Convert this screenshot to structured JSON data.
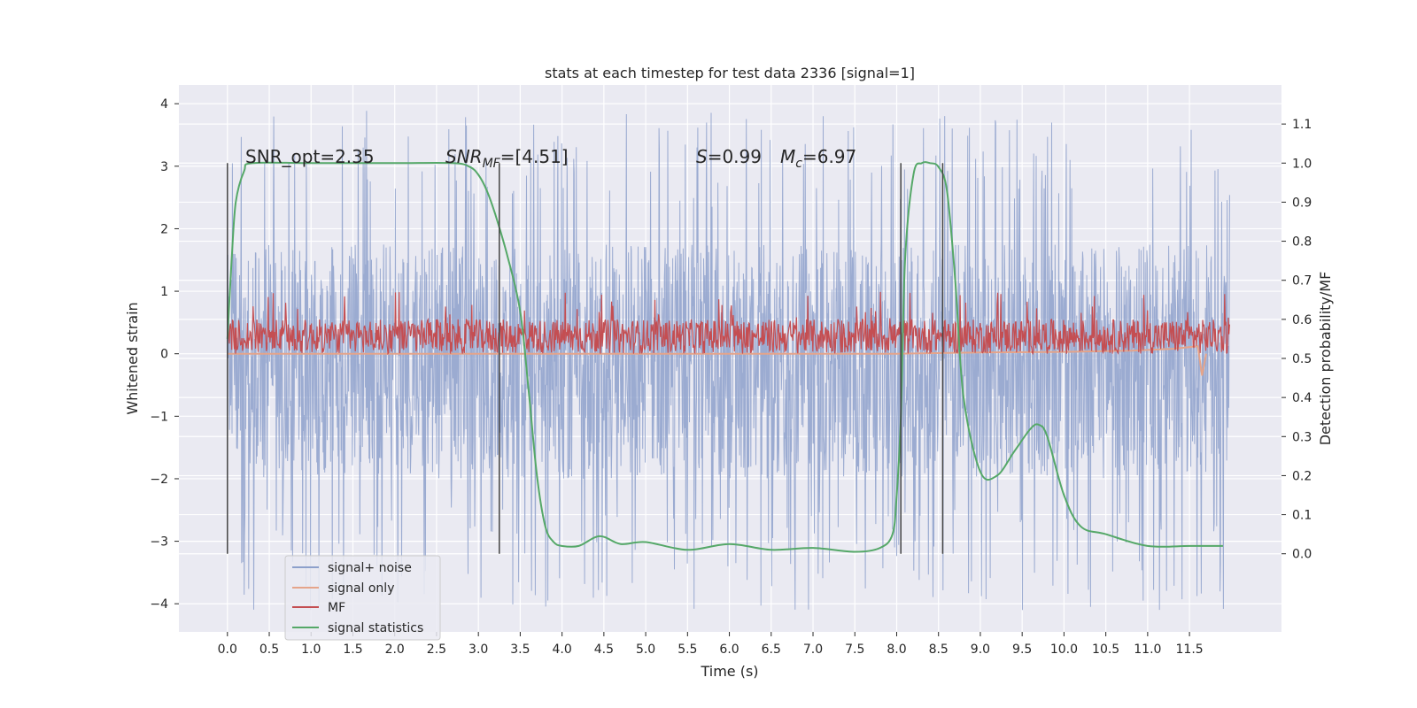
{
  "chart_data": {
    "type": "line",
    "title": "stats at each timestep for test data 2336 [signal=1]",
    "xlabel": "Time (s)",
    "ylabel": "Whitened strain",
    "ylabel_right": "Detection probability/MF",
    "xlim": [
      -0.58,
      12.6
    ],
    "ylim": [
      -4.45,
      4.3
    ],
    "ylim_right": [
      -0.2,
      1.2
    ],
    "xticks": [
      "0.0",
      "0.5",
      "1.0",
      "1.5",
      "2.0",
      "2.5",
      "3.0",
      "3.5",
      "4.0",
      "4.5",
      "5.0",
      "5.5",
      "6.0",
      "6.5",
      "7.0",
      "7.5",
      "8.0",
      "8.5",
      "9.0",
      "9.5",
      "10.0",
      "10.5",
      "11.0",
      "11.5"
    ],
    "yticks": [
      "-4",
      "-3",
      "-2",
      "-1",
      "0",
      "1",
      "2",
      "3",
      "4"
    ],
    "yticks_right": [
      "0.0",
      "0.1",
      "0.2",
      "0.3",
      "0.4",
      "0.5",
      "0.6",
      "0.7",
      "0.8",
      "0.9",
      "1.0",
      "1.1"
    ],
    "grid": true,
    "legend_position": "lower-left",
    "annotations": {
      "snr_opt": "SNR_opt=2.35",
      "snr_mf_name": "SNR",
      "snr_mf_sub": "MF",
      "snr_mf_value": "=[4.51]",
      "s_name": "S",
      "s_value": "=0.99",
      "mc_name": "M",
      "mc_sub": "c",
      "mc_value": "=6.97"
    },
    "vlines_x": [
      0.0,
      3.25,
      8.05,
      8.55
    ],
    "series": [
      {
        "name": "signal+ noise",
        "color": "#8da0cb",
        "axis": "left",
        "kind": "noise",
        "x_range": [
          0.0,
          11.98
        ],
        "core_range": [
          -2.0,
          1.75
        ],
        "extreme_range": [
          -4.1,
          3.9
        ]
      },
      {
        "name": "signal only",
        "color": "#e5a48a",
        "axis": "left",
        "kind": "chirp",
        "x": [
          0.0,
          8.0,
          9.0,
          10.0,
          10.8,
          11.3,
          11.6,
          11.65,
          11.7
        ],
        "y": [
          0.0,
          0.0,
          0.02,
          0.03,
          0.05,
          0.08,
          0.12,
          -0.35,
          0.0
        ]
      },
      {
        "name": "MF",
        "color": "#c44e52",
        "axis": "left",
        "kind": "band",
        "x_range": [
          0.0,
          11.98
        ],
        "band": [
          0.0,
          0.55
        ],
        "extreme_max": 1.0
      },
      {
        "name": "signal statistics",
        "color": "#55a868",
        "axis": "right",
        "kind": "curve",
        "x": [
          0.0,
          0.05,
          0.1,
          0.2,
          0.3,
          1.0,
          2.0,
          2.7,
          2.9,
          3.0,
          3.1,
          3.2,
          3.35,
          3.5,
          3.6,
          3.7,
          3.8,
          3.9,
          4.0,
          4.2,
          4.45,
          4.7,
          5.0,
          5.5,
          6.0,
          6.5,
          7.0,
          7.5,
          7.8,
          7.95,
          8.0,
          8.05,
          8.1,
          8.2,
          8.3,
          8.4,
          8.5,
          8.6,
          8.7,
          8.8,
          9.0,
          9.2,
          9.4,
          9.6,
          9.7,
          9.8,
          10.0,
          10.2,
          10.5,
          11.0,
          11.5,
          11.9
        ],
        "y": [
          0.55,
          0.75,
          0.9,
          0.98,
          1.0,
          1.0,
          1.0,
          1.0,
          0.99,
          0.97,
          0.93,
          0.87,
          0.76,
          0.62,
          0.42,
          0.2,
          0.07,
          0.03,
          0.02,
          0.02,
          0.045,
          0.025,
          0.03,
          0.01,
          0.025,
          0.01,
          0.015,
          0.005,
          0.015,
          0.05,
          0.15,
          0.35,
          0.75,
          0.97,
          1.0,
          1.0,
          0.99,
          0.93,
          0.7,
          0.4,
          0.21,
          0.2,
          0.26,
          0.32,
          0.33,
          0.3,
          0.15,
          0.07,
          0.05,
          0.02,
          0.02,
          0.02
        ]
      }
    ]
  }
}
